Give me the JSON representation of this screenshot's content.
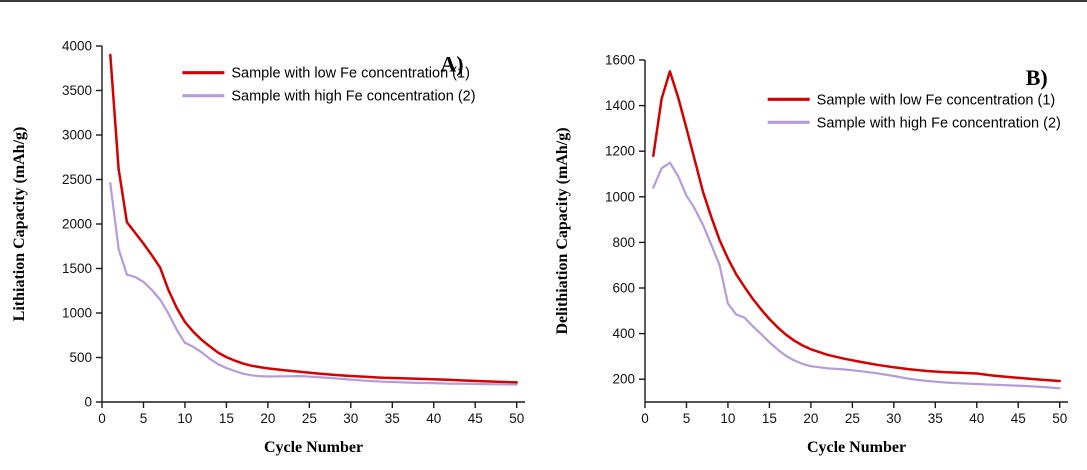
{
  "accent_colors": {
    "series_red": "#d40000",
    "series_purple": "#b39cd9",
    "axis": "#1a1a1a",
    "text": "#000000"
  },
  "chart_data": [
    {
      "type": "line",
      "panel_label": "A)",
      "title": "",
      "xlabel": "Cycle Number",
      "ylabel": "Lithiation Capacity (mAh/g)",
      "xlim": [
        0,
        51
      ],
      "ylim": [
        0,
        4000
      ],
      "xticks": [
        0,
        5,
        10,
        15,
        20,
        25,
        30,
        35,
        40,
        45,
        50
      ],
      "yticks": [
        0,
        500,
        1000,
        1500,
        2000,
        2500,
        3000,
        3500,
        4000
      ],
      "grid": false,
      "legend_position": "inside-top-center",
      "legend_pos": {
        "x": 0.19,
        "y": 0.075
      },
      "panel_label_pos": {
        "x": 0.8,
        "y": 0.055
      },
      "series": [
        {
          "name": "Sample with low Fe concentration (1)",
          "color": "#d40000",
          "x": [
            1,
            2,
            3,
            4,
            5,
            6,
            7,
            8,
            9,
            10,
            11,
            12,
            13,
            14,
            15,
            16,
            17,
            18,
            19,
            20,
            22,
            24,
            26,
            28,
            30,
            32,
            34,
            36,
            38,
            40,
            42,
            44,
            46,
            48,
            50
          ],
          "y": [
            3900,
            2620,
            2020,
            1900,
            1780,
            1650,
            1510,
            1260,
            1060,
            900,
            790,
            700,
            625,
            555,
            505,
            465,
            432,
            408,
            392,
            378,
            356,
            338,
            320,
            305,
            292,
            282,
            272,
            266,
            262,
            256,
            248,
            240,
            233,
            226,
            220
          ]
        },
        {
          "name": "Sample with high Fe concentration (2)",
          "color": "#b39cd9",
          "x": [
            1,
            2,
            3,
            4,
            5,
            6,
            7,
            8,
            9,
            10,
            11,
            12,
            13,
            14,
            15,
            16,
            17,
            18,
            19,
            20,
            22,
            24,
            26,
            28,
            30,
            32,
            34,
            36,
            38,
            40,
            42,
            44,
            46,
            48,
            50
          ],
          "y": [
            2460,
            1720,
            1430,
            1405,
            1350,
            1260,
            1150,
            995,
            815,
            665,
            620,
            560,
            485,
            425,
            382,
            348,
            318,
            300,
            291,
            286,
            289,
            291,
            280,
            266,
            252,
            238,
            228,
            221,
            215,
            211,
            207,
            204,
            201,
            199,
            197
          ]
        }
      ]
    },
    {
      "type": "line",
      "panel_label": "B)",
      "title": "",
      "xlabel": "Cycle Number",
      "ylabel": "Delithiation Capacity (mAh/g)",
      "xlim": [
        0,
        51
      ],
      "ylim": [
        100,
        1600
      ],
      "xticks": [
        0,
        5,
        10,
        15,
        20,
        25,
        30,
        35,
        40,
        45,
        50
      ],
      "yticks": [
        200,
        400,
        600,
        800,
        1000,
        1200,
        1400,
        1600
      ],
      "grid": false,
      "legend_position": "inside-top-center-right",
      "legend_pos": {
        "x": 0.29,
        "y": 0.115
      },
      "panel_label_pos": {
        "x": 0.9,
        "y": 0.055
      },
      "series": [
        {
          "name": "Sample with low Fe concentration (1)",
          "color": "#d40000",
          "x": [
            1,
            2,
            3,
            4,
            5,
            6,
            7,
            8,
            9,
            10,
            11,
            12,
            13,
            14,
            15,
            16,
            17,
            18,
            19,
            20,
            22,
            24,
            26,
            28,
            30,
            32,
            34,
            36,
            38,
            40,
            42,
            44,
            46,
            48,
            50
          ],
          "y": [
            1180,
            1430,
            1550,
            1435,
            1300,
            1160,
            1020,
            910,
            810,
            730,
            660,
            605,
            552,
            506,
            464,
            427,
            395,
            369,
            348,
            331,
            307,
            290,
            276,
            263,
            252,
            243,
            236,
            231,
            228,
            225,
            216,
            209,
            203,
            197,
            192
          ]
        },
        {
          "name": "Sample with high Fe concentration (2)",
          "color": "#b39cd9",
          "x": [
            1,
            2,
            3,
            4,
            5,
            6,
            7,
            8,
            9,
            10,
            11,
            12,
            13,
            14,
            15,
            16,
            17,
            18,
            19,
            20,
            22,
            24,
            26,
            28,
            30,
            32,
            34,
            36,
            38,
            40,
            42,
            44,
            46,
            48,
            50
          ],
          "y": [
            1040,
            1125,
            1150,
            1090,
            1005,
            948,
            876,
            788,
            700,
            532,
            484,
            470,
            432,
            398,
            362,
            330,
            302,
            282,
            267,
            257,
            248,
            243,
            235,
            226,
            214,
            201,
            192,
            186,
            182,
            179,
            176,
            173,
            170,
            166,
            160
          ]
        }
      ]
    }
  ]
}
